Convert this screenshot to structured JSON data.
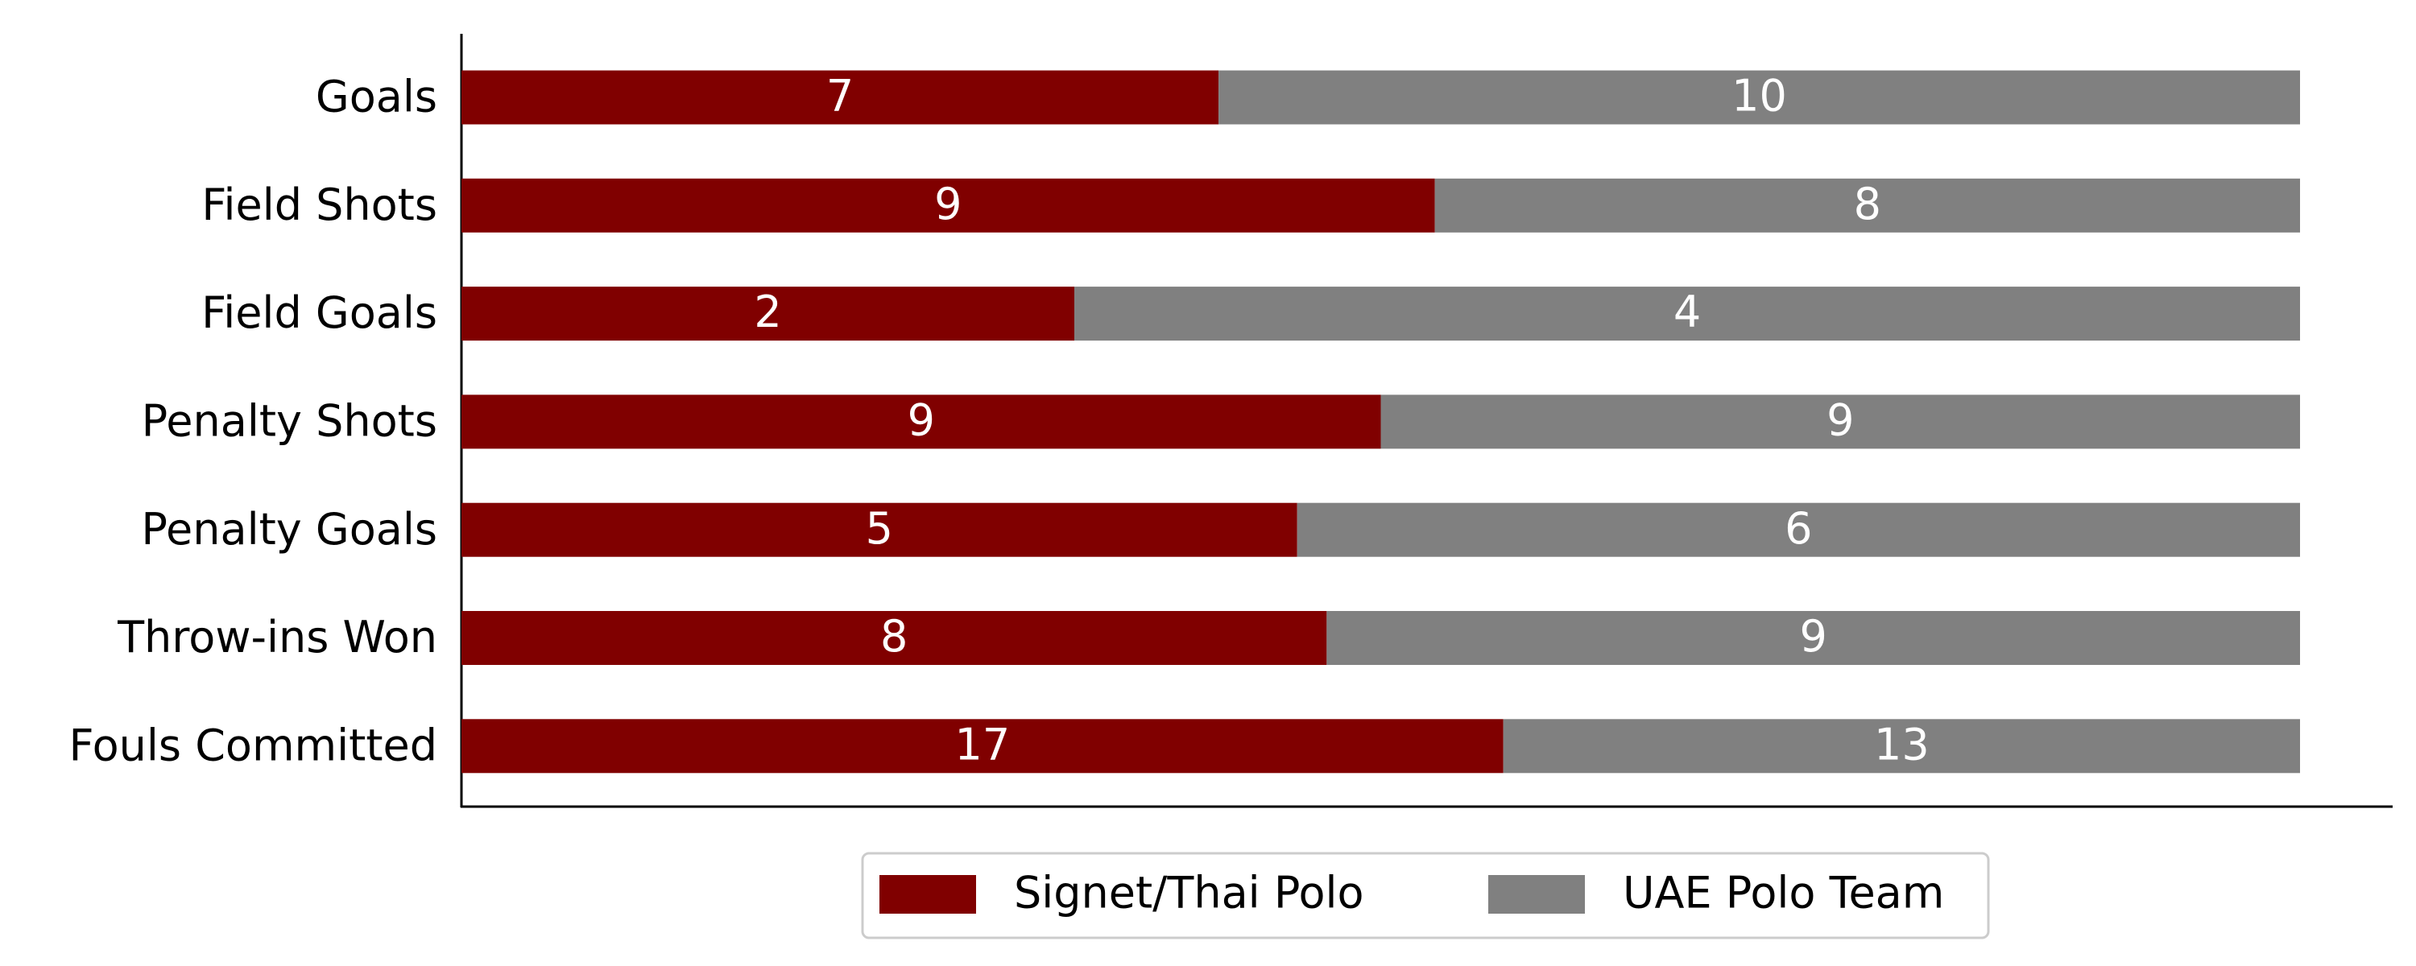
{
  "chart_data": {
    "type": "bar",
    "orientation": "horizontal",
    "stacked": "percent",
    "categories": [
      "Goals",
      "Field Shots",
      "Field Goals",
      "Penalty Shots",
      "Penalty Goals",
      "Throw-ins Won",
      "Fouls Committed"
    ],
    "series": [
      {
        "name": "Signet/Thai Polo",
        "color": "#800000",
        "values": [
          7,
          9,
          2,
          9,
          5,
          8,
          17
        ]
      },
      {
        "name": "UAE Polo Team",
        "color": "#808080",
        "values": [
          10,
          8,
          4,
          9,
          6,
          9,
          13
        ]
      }
    ],
    "legend": "bottom"
  }
}
